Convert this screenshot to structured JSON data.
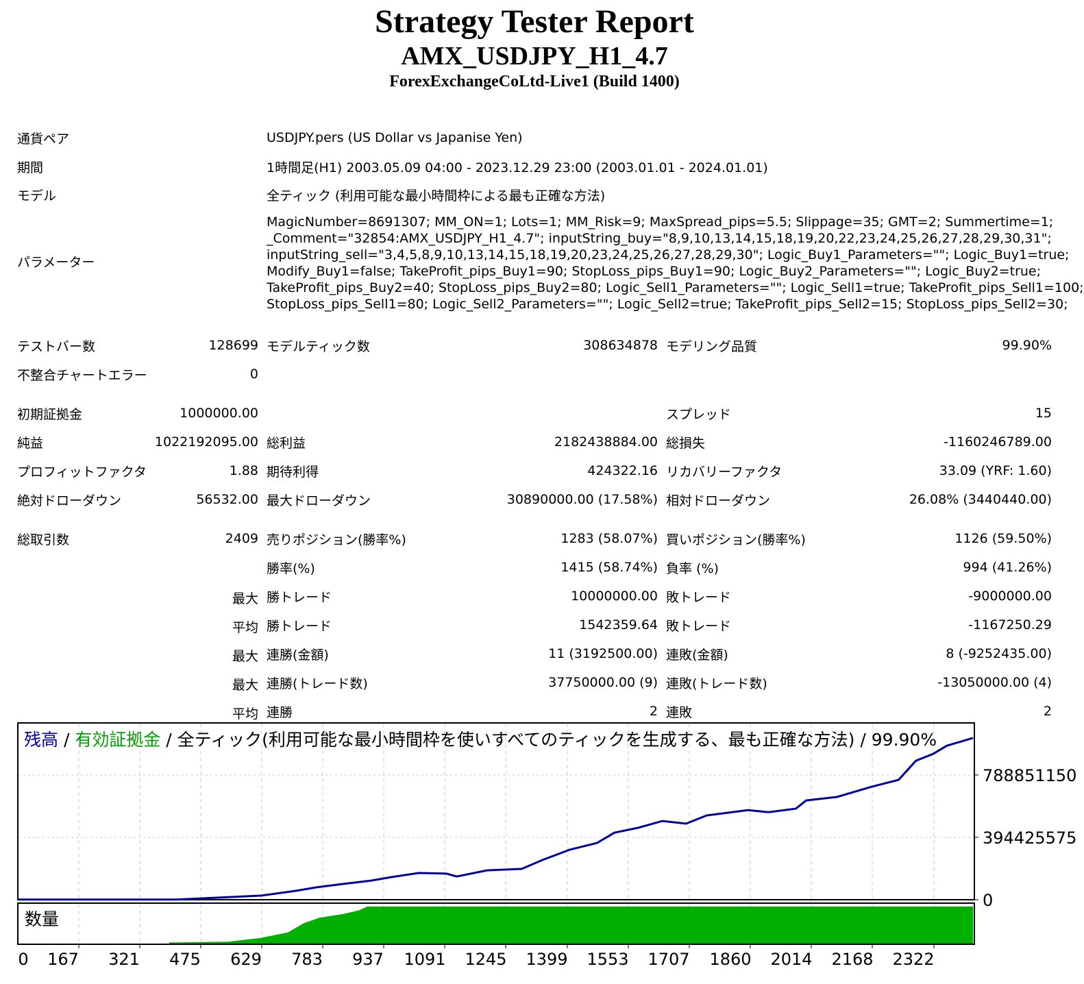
{
  "header": {
    "title": "Strategy Tester Report",
    "expert": "AMX_USDJPY_H1_4.7",
    "server": "ForexExchangeCoLtd-Live1 (Build 1400)"
  },
  "info": {
    "symbol_label": "通貨ペア",
    "symbol": "USDJPY.pers (US Dollar vs Japanise Yen)",
    "period_label": "期間",
    "period": "1時間足(H1) 2003.05.09 04:00 - 2023.12.29 23:00 (2003.01.01 - 2024.01.01)",
    "model_label": "モデル",
    "model": "全ティック (利用可能な最小時間枠による最も正確な方法)",
    "params_label": "パラメーター",
    "params": [
      "MagicNumber=8691307; MM_ON=1; Lots=1; MM_Risk=9; MaxSpread_pips=5.5; Slippage=35; GMT=2; Summertime=1;",
      "_Comment=\"32854:AMX_USDJPY_H1_4.7\"; inputString_buy=\"8,9,10,13,14,15,18,19,20,22,23,24,25,26,27,28,29,30,31\";",
      "inputString_sell=\"3,4,5,8,9,10,13,14,15,18,19,20,23,24,25,26,27,28,29,30\"; Logic_Buy1_Parameters=\"\"; Logic_Buy1=true;",
      "Modify_Buy1=false; TakeProfit_pips_Buy1=90; StopLoss_pips_Buy1=90; Logic_Buy2_Parameters=\"\"; Logic_Buy2=true;",
      "TakeProfit_pips_Buy2=40; StopLoss_pips_Buy2=80; Logic_Sell1_Parameters=\"\"; Logic_Sell1=true; TakeProfit_pips_Sell1=100;",
      "StopLoss_pips_Sell1=80; Logic_Sell2_Parameters=\"\"; Logic_Sell2=true; TakeProfit_pips_Sell2=15; StopLoss_pips_Sell2=30;"
    ]
  },
  "rows": [
    {
      "y": 491,
      "c": [
        [
          "テストバー数",
          "128699"
        ],
        [
          "モデルティック数",
          "308634878"
        ],
        [
          "モデリング品質",
          "99.90%"
        ]
      ]
    },
    {
      "y": 533,
      "c": [
        [
          "不整合チャートエラー",
          "0"
        ]
      ]
    },
    {
      "y": 590,
      "c": [
        [
          "初期証拠金",
          "1000000.00"
        ],
        [
          "",
          ""
        ],
        [
          "スプレッド",
          "15"
        ]
      ]
    },
    {
      "y": 632,
      "c": [
        [
          "純益",
          "1022192095.00"
        ],
        [
          "総利益",
          "2182438884.00"
        ],
        [
          "総損失",
          "-1160246789.00"
        ]
      ]
    },
    {
      "y": 674,
      "c": [
        [
          "プロフィットファクタ",
          "1.88"
        ],
        [
          "期待利得",
          "424322.16"
        ],
        [
          "リカバリーファクタ",
          "33.09 (YRF: 1.60)"
        ]
      ]
    },
    {
      "y": 716,
      "c": [
        [
          "絶対ドローダウン",
          "56532.00"
        ],
        [
          "最大ドローダウン",
          "30890000.00 (17.58%)"
        ],
        [
          "相対ドローダウン",
          "26.08% (3440440.00)"
        ]
      ]
    },
    {
      "y": 773,
      "c": [
        [
          "総取引数",
          "2409"
        ],
        [
          "売りポジション(勝率%)",
          "1283 (58.07%)"
        ],
        [
          "買いポジション(勝率%)",
          "1126 (59.50%)"
        ]
      ]
    },
    {
      "y": 815,
      "c": [
        [
          "",
          ""
        ],
        [
          "勝率(%)",
          "1415 (58.74%)"
        ],
        [
          "負率 (%)",
          "994 (41.26%)"
        ]
      ]
    },
    {
      "y": 857,
      "c": [
        [
          "",
          "最大"
        ],
        [
          "勝トレード",
          "10000000.00"
        ],
        [
          "敗トレード",
          "-9000000.00"
        ]
      ]
    },
    {
      "y": 899,
      "c": [
        [
          "",
          "平均"
        ],
        [
          "勝トレード",
          "1542359.64"
        ],
        [
          "敗トレード",
          "-1167250.29"
        ]
      ]
    },
    {
      "y": 941,
      "c": [
        [
          "",
          "最大"
        ],
        [
          "連勝(金額)",
          "11 (3192500.00)"
        ],
        [
          "連敗(金額)",
          "8 (-9252435.00)"
        ]
      ]
    },
    {
      "y": 983,
      "c": [
        [
          "",
          "最大"
        ],
        [
          "連勝(トレード数)",
          "37750000.00 (9)"
        ],
        [
          "連敗(トレード数)",
          "-13050000.00 (4)"
        ]
      ]
    },
    {
      "y": 1025,
      "c": [
        [
          "",
          "平均"
        ],
        [
          "連勝",
          "2"
        ],
        [
          "連敗",
          "2"
        ]
      ]
    }
  ],
  "chart_data": {
    "type": "line",
    "legend": {
      "balance": "残高",
      "sep": " / ",
      "equity": "有効証拠金",
      "rest": " / 全ティック(利用可能な最小時間枠を使いすべてのティックを生成する、最も正確な方法) / 99.90%"
    },
    "colors": {
      "balance": "#0000a0",
      "equity": "#00a000",
      "volume": "#00b000",
      "grid": "#c8c8c8"
    },
    "volume_label": "数量",
    "xticks": [
      "0",
      "167",
      "321",
      "475",
      "629",
      "783",
      "937",
      "1091",
      "1245",
      "1399",
      "1553",
      "1707",
      "1860",
      "2014",
      "2168",
      "2322"
    ],
    "yticks": [
      "0",
      "394425575",
      "788851150"
    ],
    "ylim": [
      0,
      1030000000
    ],
    "xlim": [
      0,
      2409
    ],
    "balance": [
      [
        0,
        1000000
      ],
      [
        400,
        1200000
      ],
      [
        612,
        26000000
      ],
      [
        699,
        56000000
      ],
      [
        751,
        78000000
      ],
      [
        820,
        100000000
      ],
      [
        890,
        121000000
      ],
      [
        941,
        143000000
      ],
      [
        1010,
        169000000
      ],
      [
        1080,
        165000000
      ],
      [
        1106,
        147000000
      ],
      [
        1183,
        186000000
      ],
      [
        1270,
        195000000
      ],
      [
        1322,
        251000000
      ],
      [
        1391,
        316000000
      ],
      [
        1460,
        359000000
      ],
      [
        1504,
        424000000
      ],
      [
        1564,
        455000000
      ],
      [
        1625,
        498000000
      ],
      [
        1685,
        481000000
      ],
      [
        1737,
        533000000
      ],
      [
        1841,
        567000000
      ],
      [
        1893,
        554000000
      ],
      [
        1962,
        576000000
      ],
      [
        1988,
        628000000
      ],
      [
        2066,
        650000000
      ],
      [
        2152,
        714000000
      ],
      [
        2221,
        758000000
      ],
      [
        2265,
        879000000
      ],
      [
        2308,
        922000000
      ],
      [
        2343,
        974000000
      ],
      [
        2409,
        1023192095
      ]
    ],
    "volume": [
      [
        0,
        0
      ],
      [
        380,
        0
      ],
      [
        381,
        0.03
      ],
      [
        530,
        0.05
      ],
      [
        610,
        0.15
      ],
      [
        680,
        0.3
      ],
      [
        720,
        0.55
      ],
      [
        760,
        0.7
      ],
      [
        820,
        0.8
      ],
      [
        860,
        0.9
      ],
      [
        880,
        1
      ],
      [
        2409,
        1
      ]
    ]
  }
}
